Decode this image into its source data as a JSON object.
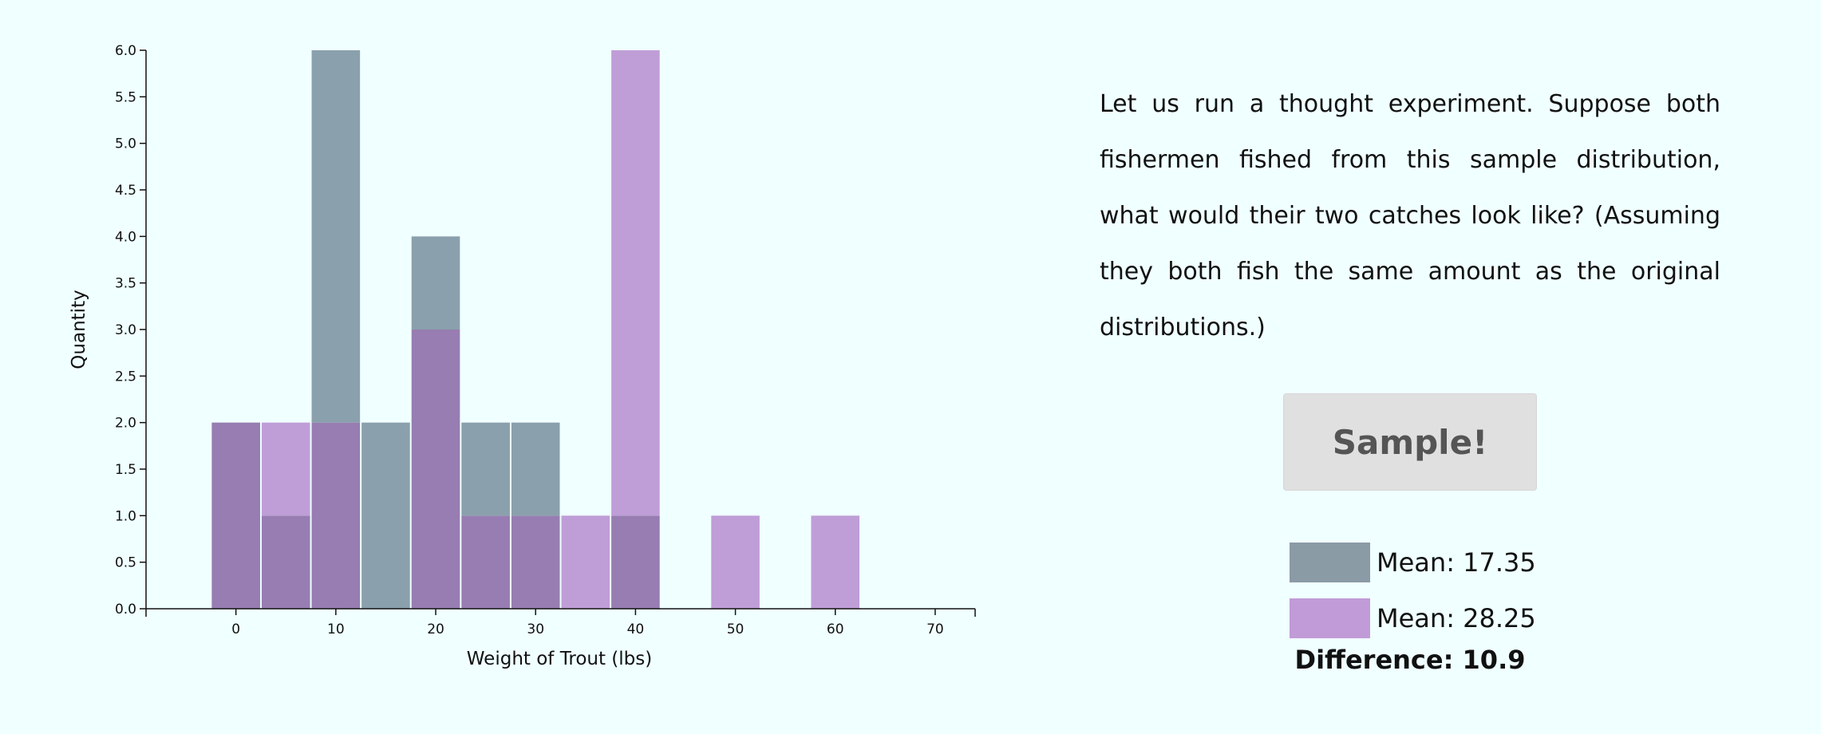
{
  "chart_data": {
    "type": "bar",
    "xlabel": "Weight of Trout (lbs)",
    "ylabel": "Quantity",
    "xlim": [
      -9,
      74
    ],
    "ylim": [
      0,
      6
    ],
    "x_ticks": [
      0,
      10,
      20,
      30,
      40,
      50,
      60,
      70
    ],
    "y_ticks": [
      0.0,
      0.5,
      1.0,
      1.5,
      2.0,
      2.5,
      3.0,
      3.5,
      4.0,
      4.5,
      5.0,
      5.5,
      6.0
    ],
    "bin_width": 5,
    "grid": false,
    "series": [
      {
        "color": "#8aa0ac",
        "bins": [
          0,
          5,
          10,
          15,
          20,
          25,
          30,
          35,
          40
        ],
        "values": [
          2,
          1,
          6,
          2,
          4,
          2,
          2,
          0,
          1
        ]
      },
      {
        "color": "#bf9ed7",
        "bins": [
          0,
          5,
          10,
          15,
          20,
          25,
          30,
          35,
          40,
          45,
          50,
          55,
          60
        ],
        "values": [
          2,
          2,
          2,
          0,
          3,
          1,
          1,
          1,
          6,
          0,
          1,
          0,
          1
        ]
      }
    ],
    "overlap_color": "#977db1"
  },
  "panel": {
    "paragraph": "Let us run a thought experiment. Suppose both fishermen fished from this sample distribution, what would their two catches look like? (Assuming they both fish the same amount as the original distributions.)",
    "button_label": "Sample!",
    "legend": [
      {
        "color": "#8a9ba6",
        "label": "Mean: 17.35"
      },
      {
        "color": "#c19bd7",
        "label": "Mean: 28.25"
      }
    ],
    "difference": "Difference: 10.9"
  }
}
